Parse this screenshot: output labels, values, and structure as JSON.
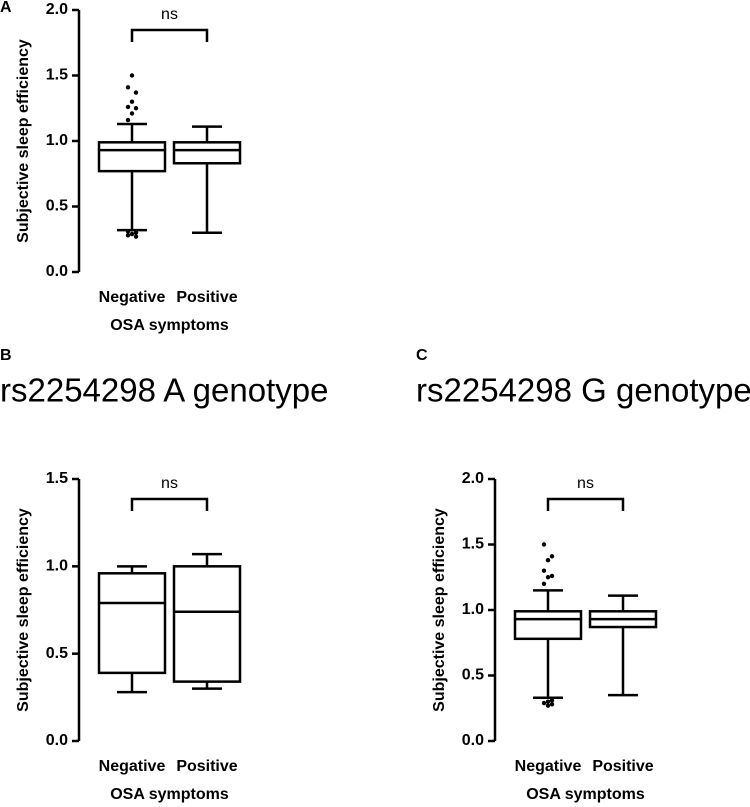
{
  "chart_data": [
    {
      "type": "box",
      "label": "A",
      "ylabel": "Subjective sleep efficiency",
      "xlabel": "OSA symptoms",
      "categories": [
        "Negative",
        "Positive"
      ],
      "annotation": "ns",
      "ylim": [
        0,
        2
      ],
      "yticks": [
        {
          "value": 0,
          "label": "0.0"
        },
        0.5,
        {
          "value": 1,
          "label": "1.0"
        },
        1.5,
        {
          "value": 2,
          "label": "2.0"
        }
      ],
      "boxes": [
        {
          "low": 0.32,
          "q1": 0.77,
          "median": 0.93,
          "q3": 0.99,
          "high": 1.13,
          "outliers": [
            1.16,
            1.21,
            1.25,
            1.26,
            1.3,
            1.37,
            1.41,
            1.5,
            0.27,
            0.28,
            0.29,
            0.3,
            0.31
          ]
        },
        {
          "low": 0.3,
          "q1": 0.83,
          "median": 0.93,
          "q3": 0.99,
          "high": 1.11,
          "outliers": []
        }
      ]
    },
    {
      "type": "box",
      "label": "B",
      "title": "rs2254298 A genotype",
      "ylabel": "Subjective sleep efficiency",
      "xlabel": "OSA symptoms",
      "categories": [
        "Negative",
        "Positive"
      ],
      "annotation": "ns",
      "ylim": [
        0,
        1.5
      ],
      "yticks": [
        {
          "value": 0,
          "label": "0.0"
        },
        0.5,
        {
          "value": 1,
          "label": "1.0"
        },
        1.5
      ],
      "boxes": [
        {
          "low": 0.28,
          "q1": 0.39,
          "median": 0.79,
          "q3": 0.96,
          "high": 1.0,
          "outliers": []
        },
        {
          "low": 0.3,
          "q1": 0.34,
          "median": 0.74,
          "q3": 1.0,
          "high": 1.07,
          "outliers": []
        }
      ]
    },
    {
      "type": "box",
      "label": "C",
      "title": "rs2254298 G genotype",
      "ylabel": "Subjective sleep efficiency",
      "xlabel": "OSA symptoms",
      "categories": [
        "Negative",
        "Positive"
      ],
      "annotation": "ns",
      "ylim": [
        0,
        2
      ],
      "yticks": [
        {
          "value": 0,
          "label": "0.0"
        },
        0.5,
        {
          "value": 1,
          "label": "1.0"
        },
        1.5,
        {
          "value": 2,
          "label": "2.0"
        }
      ],
      "boxes": [
        {
          "low": 0.33,
          "q1": 0.78,
          "median": 0.93,
          "q3": 0.99,
          "high": 1.15,
          "outliers": [
            1.2,
            1.25,
            1.26,
            1.3,
            1.38,
            1.41,
            1.5,
            0.27,
            0.28,
            0.29,
            0.3,
            0.31
          ]
        },
        {
          "low": 0.35,
          "q1": 0.87,
          "median": 0.93,
          "q3": 0.99,
          "high": 1.11,
          "outliers": []
        }
      ]
    }
  ]
}
